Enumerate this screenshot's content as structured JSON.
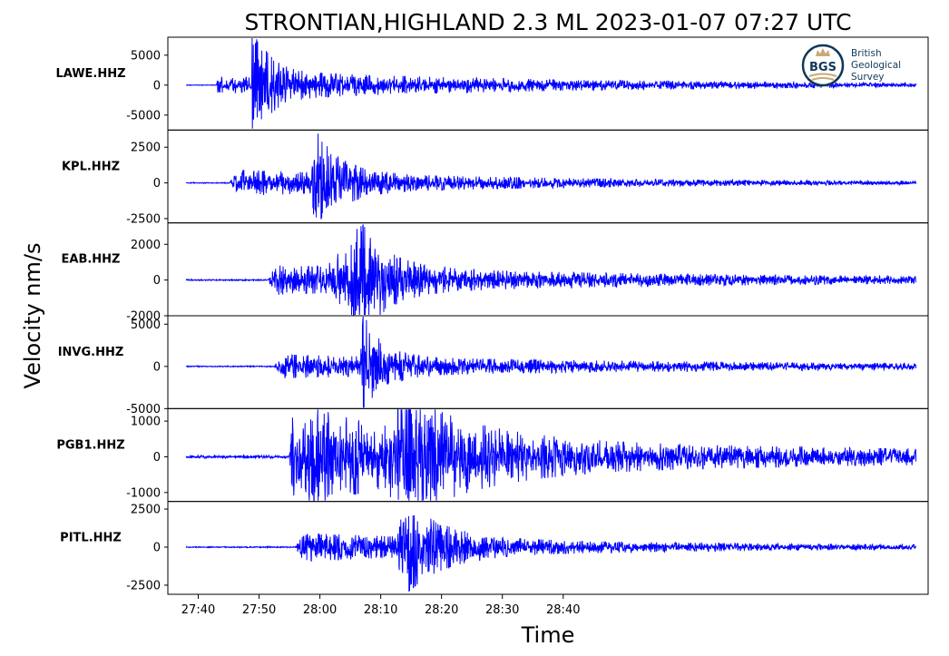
{
  "title": "STRONTIAN,HIGHLAND 2.3 ML   2023-01-07 07:27 UTC",
  "logo": {
    "mark": "BGS",
    "lines": [
      "British",
      "Geological",
      "Survey"
    ],
    "ring_color": "#10385a",
    "accent_color": "#c9a978"
  },
  "chart_data": {
    "type": "line",
    "title": "STRONTIAN,HIGHLAND 2.3 ML   2023-01-07 07:27 UTC",
    "xlabel": "Time",
    "ylabel": "Velocity nm/s",
    "x_unit": "seconds after 07:27:00 UTC",
    "xlim": [
      35,
      160
    ],
    "x_ticks": [
      40,
      50,
      60,
      70,
      80,
      90,
      100
    ],
    "x_tick_labels": [
      "27:40",
      "27:50",
      "28:00",
      "28:10",
      "28:20",
      "28:30",
      "28:40"
    ],
    "trace_start": 38,
    "trace_end": 158,
    "line_color": "#0000ff",
    "grid": false,
    "legend": "none",
    "series": [
      {
        "name": "LAWE.HHZ",
        "ylim": [
          -7500,
          8000
        ],
        "yticks": [
          5000,
          0,
          -5000
        ],
        "ytick_labels": [
          "5000",
          "0",
          "-5000"
        ],
        "bg_noise": 40,
        "events": [
          {
            "t": 43,
            "amp": 1200,
            "rise": 0.1,
            "decay": 45
          },
          {
            "t": 48.7,
            "amp": 8000,
            "rise": 0.15,
            "decay": 2.5
          },
          {
            "t": 50,
            "amp": 1000,
            "rise": 1,
            "decay": 60
          }
        ]
      },
      {
        "name": "KPL.HHZ",
        "ylim": [
          -2800,
          3700
        ],
        "yticks": [
          2500,
          0,
          -2500
        ],
        "ytick_labels": [
          "2500",
          "0",
          "-2500"
        ],
        "bg_noise": 30,
        "events": [
          {
            "t": 45,
            "amp": 800,
            "rise": 2,
            "decay": 50
          },
          {
            "t": 58.5,
            "amp": 3200,
            "rise": 0.8,
            "decay": 4
          }
        ]
      },
      {
        "name": "EAB.HHZ",
        "ylim": [
          -2000,
          3200
        ],
        "yticks": [
          2000,
          0,
          -2000
        ],
        "ytick_labels": [
          "2000",
          "0",
          "-2000"
        ],
        "bg_noise": 30,
        "events": [
          {
            "t": 51.5,
            "amp": 700,
            "rise": 1,
            "decay": 70
          },
          {
            "t": 61,
            "amp": 1100,
            "rise": 2.5,
            "decay": 7
          },
          {
            "t": 65,
            "amp": 2800,
            "rise": 0.8,
            "decay": 4
          }
        ]
      },
      {
        "name": "INVG.HHZ",
        "ylim": [
          -5000,
          6000
        ],
        "yticks": [
          5000,
          0,
          -5000
        ],
        "ytick_labels": [
          "5000",
          "0",
          "-5000"
        ],
        "bg_noise": 50,
        "events": [
          {
            "t": 52.5,
            "amp": 1200,
            "rise": 1,
            "decay": 70
          },
          {
            "t": 66.5,
            "amp": 5500,
            "rise": 0.6,
            "decay": 3
          }
        ]
      },
      {
        "name": "PGB1.HHZ",
        "ylim": [
          -1250,
          1350
        ],
        "yticks": [
          1000,
          0,
          -1000
        ],
        "ytick_labels": [
          "1000",
          "0",
          "-1000"
        ],
        "bg_noise": 35,
        "events": [
          {
            "t": 55,
            "amp": 950,
            "rise": 0.3,
            "decay": 15
          },
          {
            "t": 57,
            "amp": 450,
            "rise": 2,
            "decay": 100
          },
          {
            "t": 71,
            "amp": 1100,
            "rise": 2.5,
            "decay": 12
          }
        ]
      },
      {
        "name": "PITL.HHZ",
        "ylim": [
          -3100,
          3000
        ],
        "yticks": [
          2500,
          0,
          -2500
        ],
        "ytick_labels": [
          "2500",
          "0",
          "-2500"
        ],
        "bg_noise": 30,
        "events": [
          {
            "t": 56,
            "amp": 800,
            "rise": 1.2,
            "decay": 50
          },
          {
            "t": 72.5,
            "amp": 2800,
            "rise": 2,
            "decay": 6
          }
        ]
      }
    ]
  }
}
